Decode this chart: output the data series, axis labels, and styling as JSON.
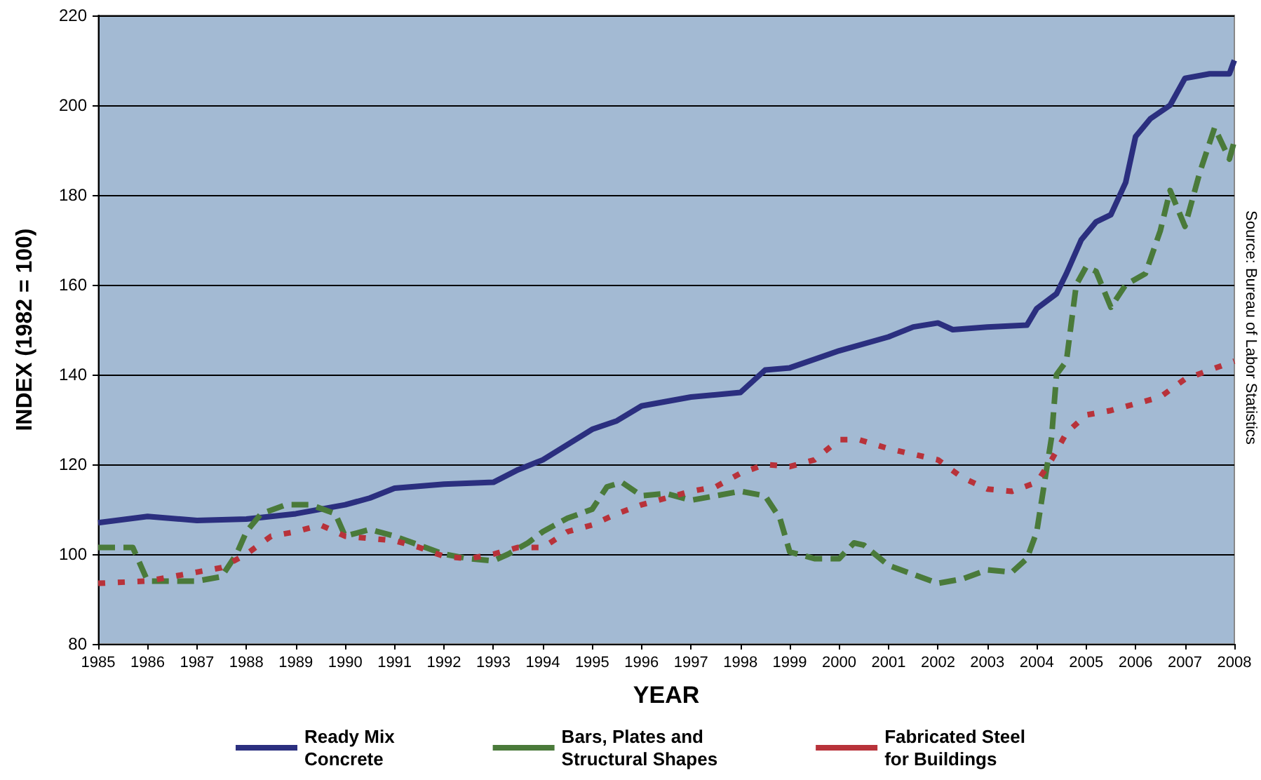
{
  "chart_data": {
    "type": "line",
    "xlabel": "YEAR",
    "ylabel": "INDEX (1982 = 100)",
    "annotations": [
      "Source: Bureau of Labor Statistics"
    ],
    "xlim": [
      1985,
      2008
    ],
    "xticks": [
      1985,
      1986,
      1987,
      1988,
      1989,
      1990,
      1991,
      1992,
      1993,
      1994,
      1995,
      1996,
      1997,
      1998,
      1999,
      2000,
      2001,
      2002,
      2003,
      2004,
      2005,
      2006,
      2007,
      2008
    ],
    "ylim": [
      80,
      220
    ],
    "yticks": [
      80,
      100,
      120,
      140,
      160,
      180,
      200,
      220
    ],
    "grid": "y",
    "legend": "bottom",
    "marker": "none",
    "series": [
      {
        "name": "Ready Mix\nConcrete",
        "color": "#2b2f7f",
        "line_style": "solid",
        "x": [
          1985,
          1986,
          1987,
          1988,
          1989,
          1990,
          1990.5,
          1991,
          1992,
          1993,
          1993.5,
          1994,
          1995,
          1995.5,
          1996,
          1997,
          1998,
          1998.5,
          1999,
          2000,
          2001,
          2001.5,
          2002,
          2002.3,
          2003,
          2003.8,
          2004,
          2004.4,
          2004.6,
          2004.9,
          2005.2,
          2005.5,
          2005.8,
          2006,
          2006.3,
          2006.7,
          2007,
          2007.5,
          2007.9,
          2008
        ],
        "values": [
          107,
          108.4,
          107.5,
          107.8,
          109,
          111,
          112.5,
          114.7,
          115.6,
          116,
          118.8,
          121,
          127.8,
          129.7,
          133,
          135,
          136,
          141,
          141.5,
          145.3,
          148.4,
          150.6,
          151.5,
          150,
          150.6,
          151,
          154.7,
          158,
          162.5,
          170,
          174,
          175.6,
          182.8,
          193,
          197,
          200,
          206,
          207,
          207,
          210
        ]
      },
      {
        "name": "Bars, Plates and\nStructural Shapes",
        "color": "#4a7a3a",
        "line_style": "dashed",
        "x": [
          1985,
          1985.7,
          1986,
          1986.5,
          1987,
          1987.5,
          1987.8,
          1988,
          1988.3,
          1988.8,
          1989.3,
          1989.8,
          1990,
          1990.5,
          1991,
          1991.5,
          1992,
          1992.5,
          1993,
          1993.3,
          1993.7,
          1994,
          1994.5,
          1995,
          1995.3,
          1995.6,
          1996,
          1996.5,
          1997,
          1997.5,
          1998,
          1998.5,
          1998.8,
          1999,
          1999.5,
          2000,
          2000.3,
          2000.5,
          2001,
          2001.5,
          2002,
          2002.5,
          2003,
          2003.5,
          2003.8,
          2004,
          2004.3,
          2004.4,
          2004.6,
          2004.8,
          2005,
          2005.2,
          2005.5,
          2005.8,
          2006.2,
          2006.5,
          2006.7,
          2007,
          2007.3,
          2007.6,
          2007.9,
          2008
        ],
        "values": [
          101.5,
          101.5,
          94,
          94,
          94,
          95,
          100,
          105,
          109,
          111,
          111,
          109,
          104,
          105.5,
          104,
          102,
          100,
          99,
          98.5,
          100,
          102.5,
          105,
          108,
          110,
          115,
          116,
          113,
          113.5,
          112,
          113,
          114,
          113,
          108,
          100.5,
          99,
          99,
          102.5,
          102,
          97.5,
          95.5,
          93.5,
          94.5,
          96.5,
          96,
          99,
          105,
          126,
          140,
          143,
          160,
          164,
          163,
          155,
          160,
          162.5,
          172,
          181,
          173,
          185,
          195,
          188,
          192
        ]
      },
      {
        "name": "Fabricated Steel\nfor Buildings",
        "color": "#b8323a",
        "line_style": "dotted",
        "x": [
          1985,
          1986,
          1987,
          1987.5,
          1988,
          1988.5,
          1989,
          1989.5,
          1990,
          1991,
          1991.5,
          1992,
          1992.5,
          1993,
          1993.5,
          1994,
          1994.5,
          1995,
          1995.5,
          1996,
          1997,
          1997.5,
          1998,
          1998.5,
          1999,
          1999.5,
          2000,
          2000.4,
          2001,
          2001.6,
          2002,
          2002.5,
          2003,
          2003.5,
          2004,
          2004.3,
          2004.6,
          2005,
          2005.5,
          2006,
          2006.5,
          2007,
          2007.5,
          2008
        ],
        "values": [
          93.5,
          94,
          96,
          97,
          100,
          104,
          105,
          106.5,
          104,
          103,
          101.5,
          99.5,
          99,
          100,
          101.5,
          101.5,
          105,
          106.5,
          109,
          111,
          114,
          115,
          118,
          120,
          119.5,
          121,
          125.5,
          125.5,
          123.5,
          122,
          121,
          117,
          114.5,
          114,
          116,
          121,
          127,
          131,
          132,
          133.5,
          135,
          139,
          141,
          143
        ]
      }
    ]
  }
}
